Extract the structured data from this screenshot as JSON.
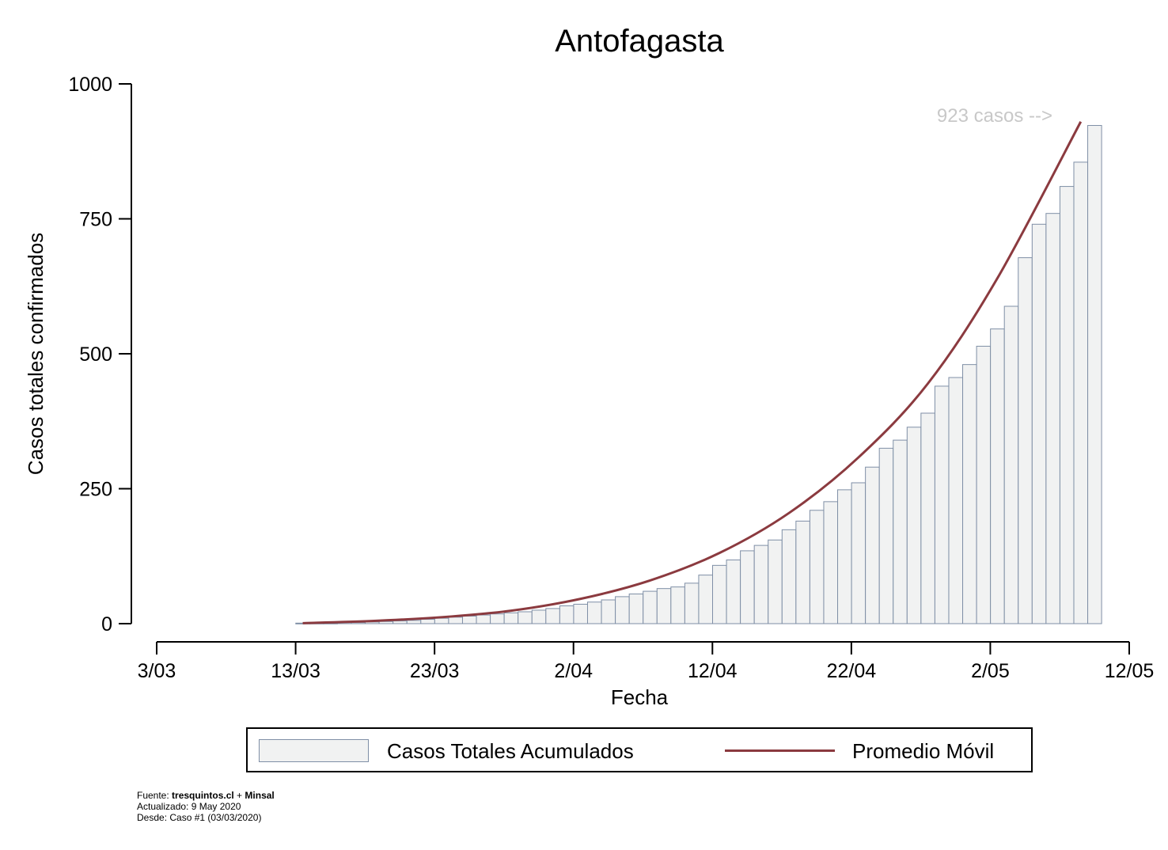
{
  "chart_data": {
    "type": "bar",
    "title": "Antofagasta",
    "xlabel": "Fecha",
    "ylabel": "Casos totales confirmados",
    "x_ticks": [
      "3/03",
      "13/03",
      "23/03",
      "2/04",
      "12/04",
      "22/04",
      "2/05",
      "12/05"
    ],
    "y_ticks": [
      "0",
      "250",
      "500",
      "750",
      "1000"
    ],
    "ylim": [
      0,
      1000
    ],
    "x_start_date": "2020-03-03",
    "x_end_date": "2020-05-12",
    "annotation": "923 casos -->",
    "grid": false,
    "legend_position": "bottom",
    "series": [
      {
        "name": "Casos Totales Acumulados",
        "kind": "bar",
        "color": "#f1f2f2",
        "edge_color": "#7f8fa6",
        "x": [
          "2020-03-13",
          "2020-03-14",
          "2020-03-15",
          "2020-03-16",
          "2020-03-17",
          "2020-03-18",
          "2020-03-19",
          "2020-03-20",
          "2020-03-21",
          "2020-03-22",
          "2020-03-23",
          "2020-03-24",
          "2020-03-25",
          "2020-03-26",
          "2020-03-27",
          "2020-03-28",
          "2020-03-29",
          "2020-03-30",
          "2020-03-31",
          "2020-04-01",
          "2020-04-02",
          "2020-04-03",
          "2020-04-04",
          "2020-04-05",
          "2020-04-06",
          "2020-04-07",
          "2020-04-08",
          "2020-04-09",
          "2020-04-10",
          "2020-04-11",
          "2020-04-12",
          "2020-04-13",
          "2020-04-14",
          "2020-04-15",
          "2020-04-16",
          "2020-04-17",
          "2020-04-18",
          "2020-04-19",
          "2020-04-20",
          "2020-04-21",
          "2020-04-22",
          "2020-04-23",
          "2020-04-24",
          "2020-04-25",
          "2020-04-26",
          "2020-04-27",
          "2020-04-28",
          "2020-04-29",
          "2020-04-30",
          "2020-05-01",
          "2020-05-02",
          "2020-05-03",
          "2020-05-04",
          "2020-05-05",
          "2020-05-06",
          "2020-05-07",
          "2020-05-08"
        ],
        "values": [
          1,
          1,
          1,
          2,
          2,
          3,
          4,
          5,
          6,
          8,
          10,
          12,
          14,
          16,
          18,
          20,
          22,
          25,
          28,
          33,
          36,
          40,
          44,
          50,
          55,
          60,
          65,
          68,
          75,
          90,
          108,
          118,
          135,
          145,
          155,
          174,
          190,
          210,
          226,
          248,
          261,
          290,
          325,
          340,
          364,
          390,
          440,
          456,
          480,
          514,
          546,
          588,
          678,
          740,
          760,
          810,
          855
        ]
      },
      {
        "name": "Promedio Móvil",
        "kind": "line",
        "color": "#8b3a3f",
        "x": [
          "2020-03-13",
          "2020-03-18",
          "2020-03-23",
          "2020-03-28",
          "2020-04-02",
          "2020-04-07",
          "2020-04-12",
          "2020-04-17",
          "2020-04-22",
          "2020-04-27",
          "2020-05-02",
          "2020-05-08"
        ],
        "values": [
          1,
          5,
          12,
          24,
          46,
          80,
          131,
          205,
          308,
          445,
          640,
          930
        ]
      }
    ],
    "last_value": {
      "x": "2020-05-09",
      "value": 923
    }
  },
  "legend": {
    "bars_label": "Casos Totales Acumulados",
    "line_label": "Promedio Móvil"
  },
  "footer": {
    "fuente_prefix": "Fuente: ",
    "fuente_site": "tresquintos.cl",
    "fuente_join": " + ",
    "fuente_org": "Minsal",
    "actualizado": "Actualizado: 9 May 2020",
    "desde": "Desde: Caso #1  (03/03/2020)"
  }
}
